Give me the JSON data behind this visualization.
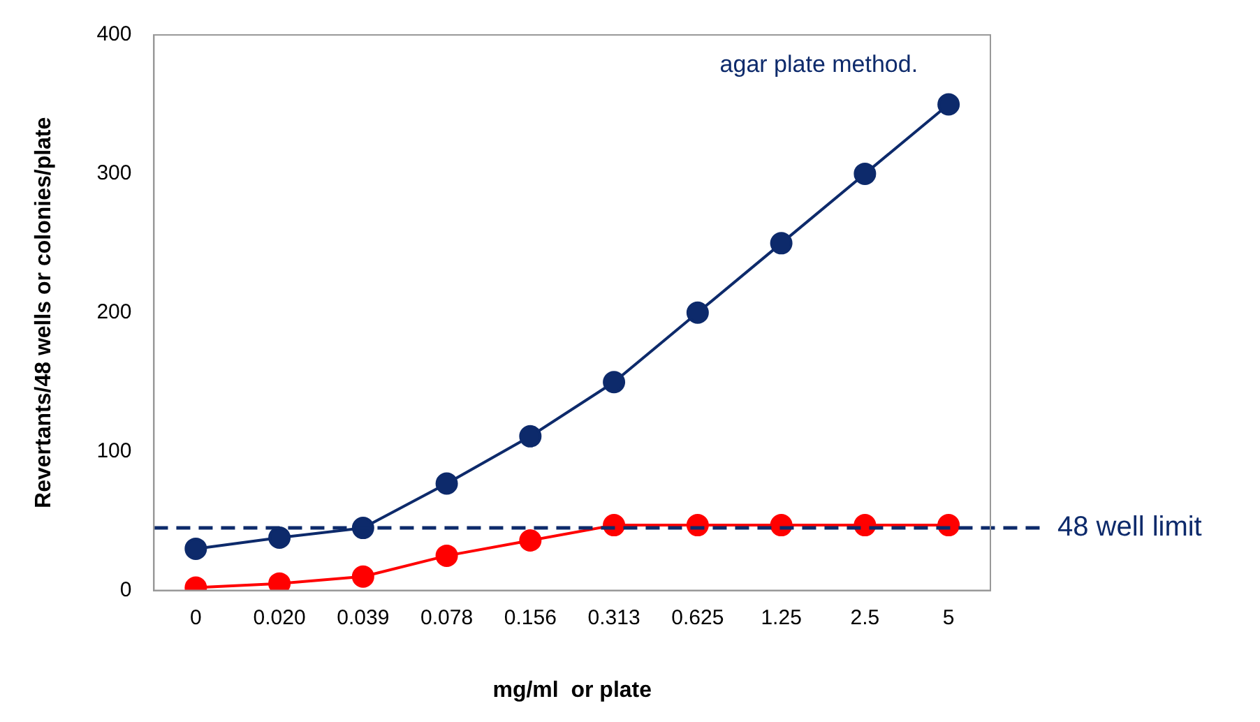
{
  "chart_data": {
    "type": "line",
    "xlabel": "mg/ml  or plate",
    "ylabel": "Revertants/48 wells or colonies/plate",
    "categories": [
      "0",
      "0.020",
      "0.039",
      "0.078",
      "0.156",
      "0.313",
      "0.625",
      "1.25",
      "2.5",
      "5"
    ],
    "series": [
      {
        "name": "agar plate method.",
        "color": "#0d2a6b",
        "values": [
          30,
          38,
          45,
          77,
          111,
          150,
          200,
          250,
          300,
          350
        ]
      },
      {
        "color": "#ff0000",
        "values": [
          2,
          5,
          10,
          25,
          36,
          47,
          47,
          47,
          47,
          47
        ]
      }
    ],
    "ylim": [
      0,
      400
    ],
    "yticks": [
      0,
      100,
      200,
      300,
      400
    ],
    "grid": false,
    "legend": false,
    "marker": "circle",
    "line_style": "solid",
    "ref_lines": [
      {
        "axis": "y",
        "value": 45,
        "label": "48 well limit",
        "color": "#0d2a6b",
        "line_style": "dashed"
      }
    ]
  }
}
